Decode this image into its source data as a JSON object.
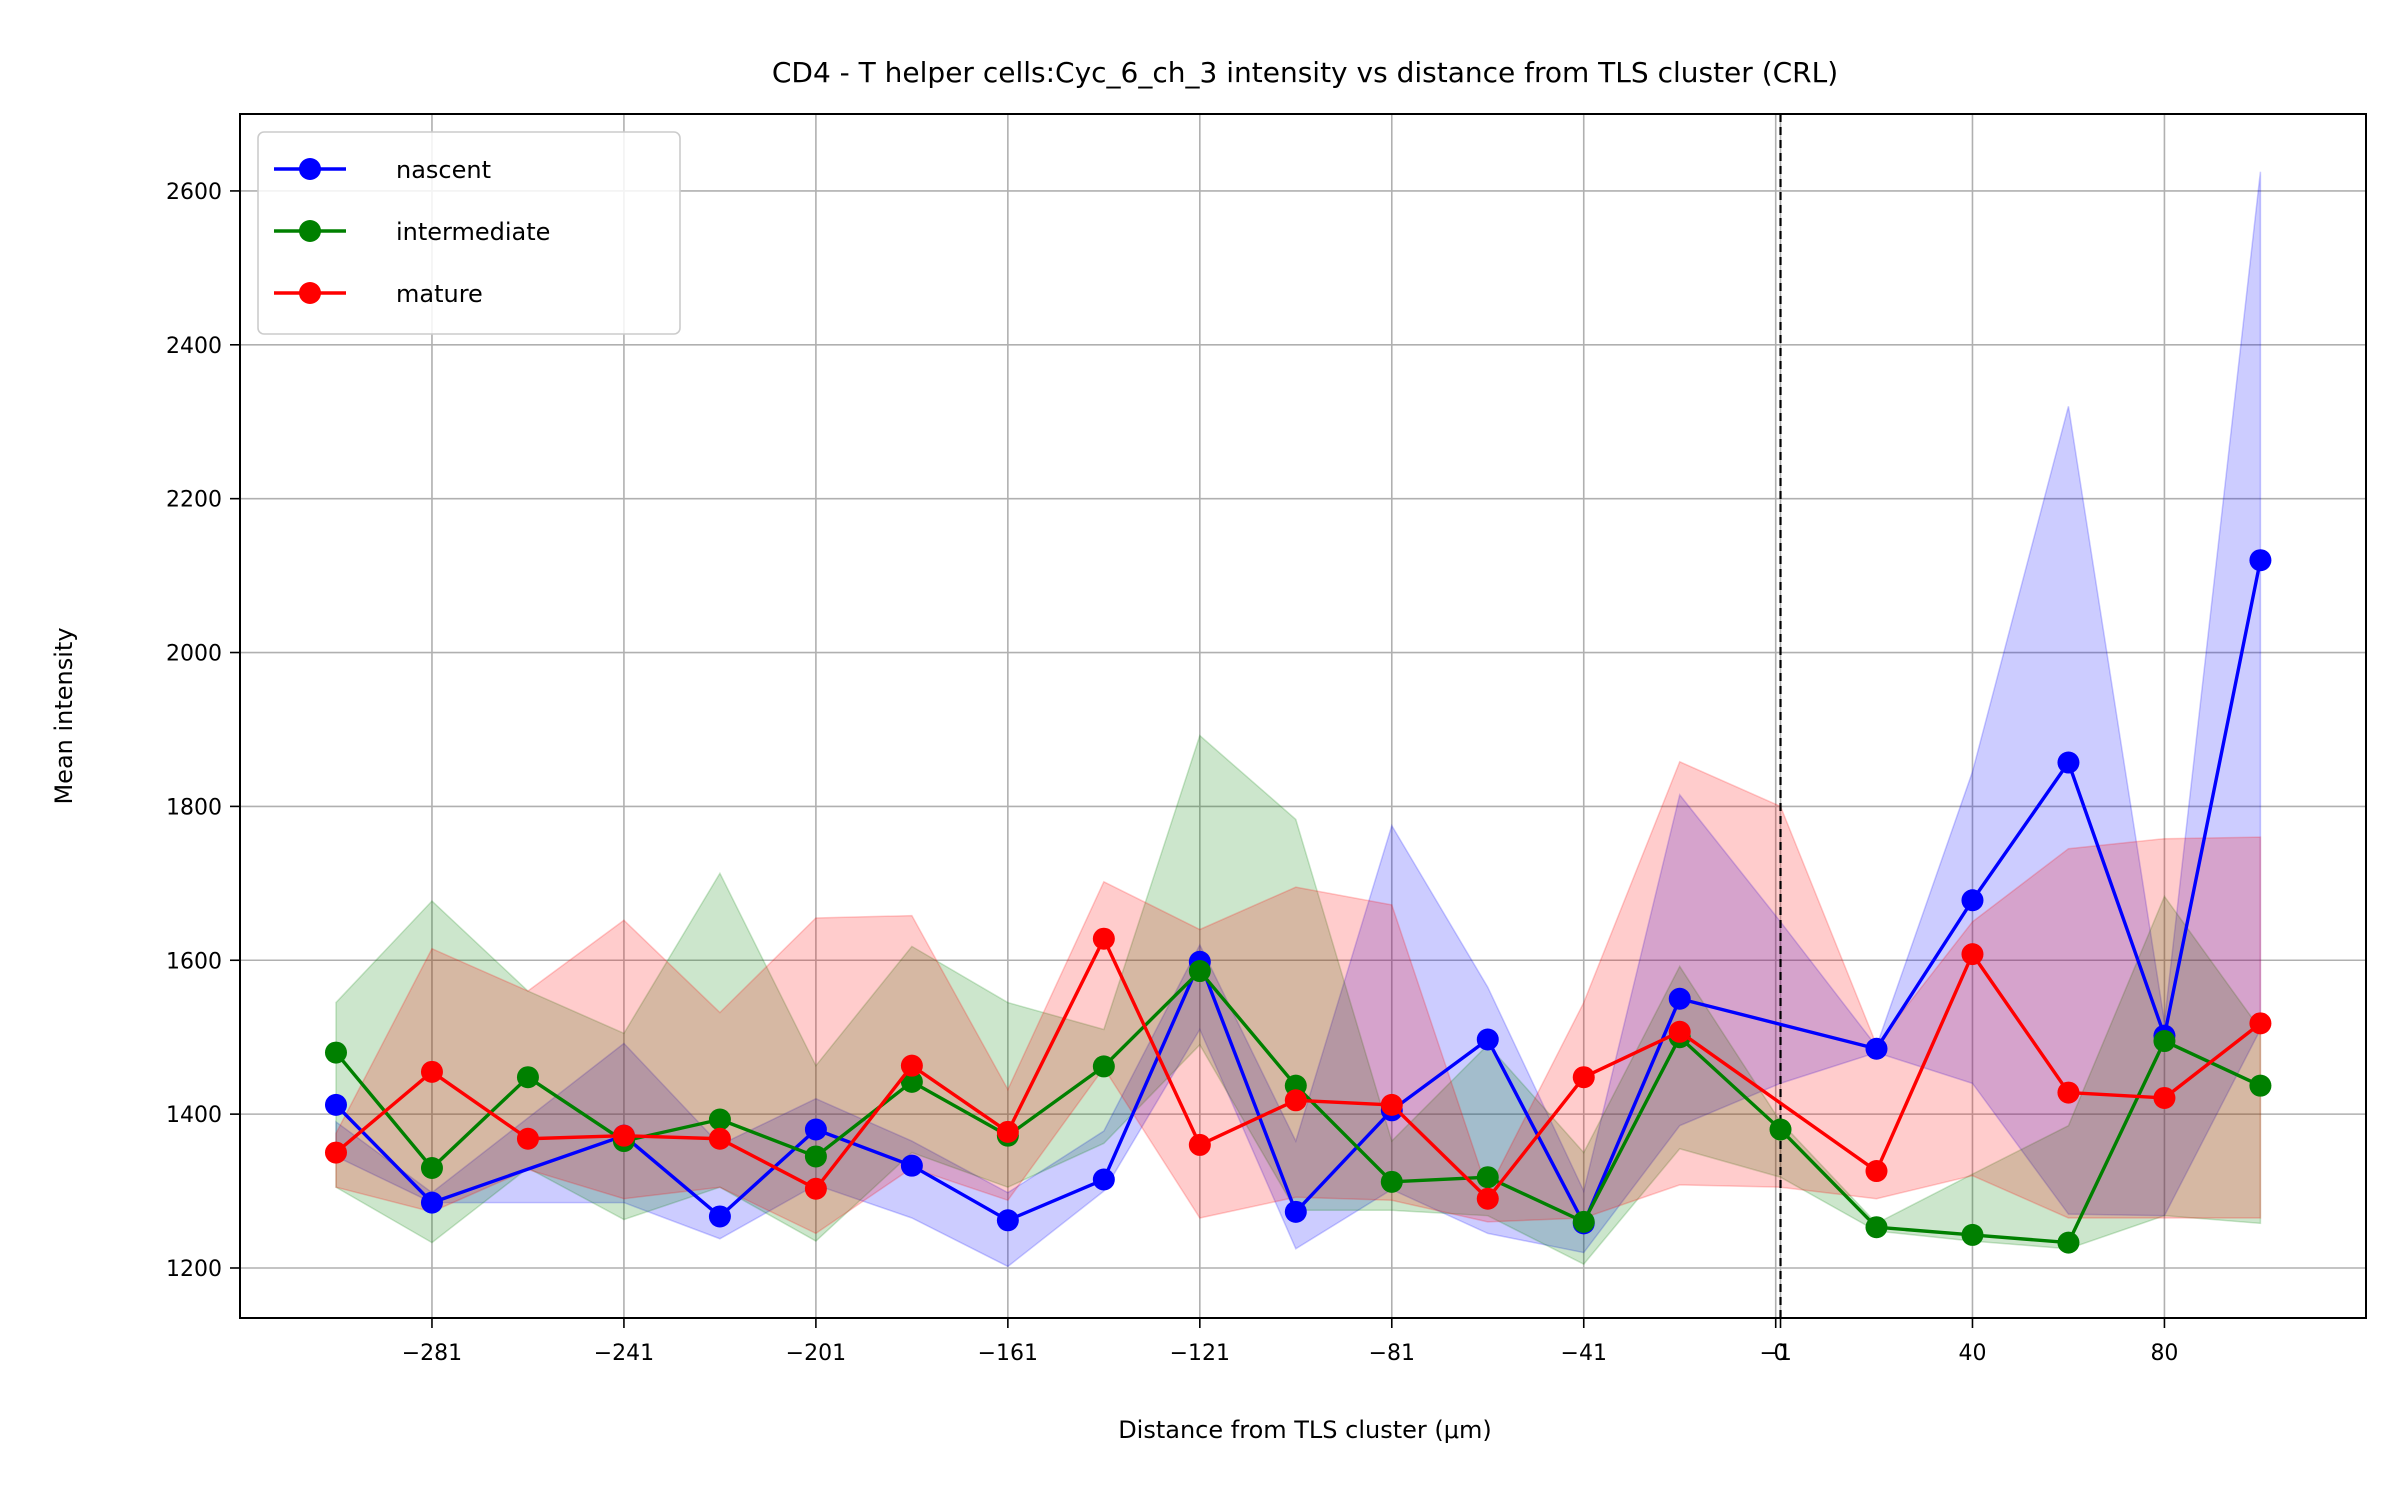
{
  "chart_data": {
    "type": "line",
    "title": "CD4 - T helper cells:Cyc_6_ch_3 intensity vs distance from TLS cluster (CRL)",
    "xlabel": "Distance from TLS cluster (μm)",
    "ylabel": "Mean intensity",
    "x_ticks": [
      -281,
      -241,
      -201,
      -161,
      -121,
      -81,
      -41,
      -1,
      0,
      40,
      80
    ],
    "y_ticks": [
      1200,
      1400,
      1600,
      1800,
      2000,
      2200,
      2400,
      2600
    ],
    "xlim": [
      -321,
      122
    ],
    "ylim": [
      1135,
      2700
    ],
    "grid": true,
    "legend_position": "top-left",
    "reference_line_x": 0,
    "x": [
      -301,
      -281,
      -261,
      -241,
      -221,
      -201,
      -181,
      -161,
      -141,
      -121,
      -101,
      -81,
      -61,
      -41,
      -21,
      0,
      20,
      40,
      60,
      80,
      100
    ],
    "series": [
      {
        "name": "nascent",
        "color": "#0000ff",
        "values": [
          1412,
          1285,
          null,
          1372,
          1267,
          1380,
          1333,
          1262,
          1315,
          1598,
          1273,
          1405,
          1497,
          1258,
          1550,
          null,
          1485,
          1678,
          1857,
          1502,
          2120
        ],
        "band_upper": [
          1390,
          1298,
          null,
          1492,
          1360,
          1420,
          1365,
          1298,
          1378,
          1620,
          1365,
          1775,
          1565,
          1300,
          1815,
          1650,
          1488,
          1845,
          2320,
          1520,
          2625
        ],
        "band_lower": [
          1345,
          1285,
          null,
          1285,
          1238,
          1308,
          1265,
          1202,
          1300,
          1510,
          1225,
          1302,
          1245,
          1220,
          1385,
          1440,
          1480,
          1440,
          1270,
          1268,
          1510
        ]
      },
      {
        "name": "intermediate",
        "color": "#008000",
        "values": [
          1480,
          1330,
          1448,
          1365,
          1393,
          1345,
          1442,
          1372,
          1462,
          1586,
          1437,
          1312,
          1318,
          1260,
          1500,
          1380,
          1253,
          1243,
          1233,
          1495,
          1437
        ],
        "band_upper": [
          1545,
          1677,
          1560,
          1505,
          1713,
          1463,
          1618,
          1545,
          1510,
          1892,
          1783,
          1365,
          1490,
          1350,
          1592,
          1390,
          1258,
          1322,
          1385,
          1683,
          1510
        ],
        "band_lower": [
          1305,
          1233,
          1330,
          1263,
          1305,
          1235,
          1350,
          1305,
          1362,
          1490,
          1275,
          1275,
          1268,
          1205,
          1355,
          1318,
          1248,
          1235,
          1225,
          1268,
          1258
        ]
      },
      {
        "name": "mature",
        "color": "#ff0000",
        "values": [
          1350,
          1455,
          1368,
          1372,
          1368,
          1303,
          1463,
          1377,
          1628,
          1360,
          1418,
          1412,
          1290,
          1448,
          1507,
          null,
          1326,
          1608,
          1428,
          1421,
          1518
        ],
        "band_upper": [
          1375,
          1615,
          1560,
          1652,
          1532,
          1655,
          1658,
          1432,
          1702,
          1640,
          1695,
          1672,
          1300,
          1545,
          1858,
          1800,
          1490,
          1650,
          1745,
          1758,
          1760
        ],
        "band_lower": [
          1305,
          1273,
          1328,
          1290,
          1305,
          1245,
          1330,
          1288,
          1460,
          1265,
          1292,
          1288,
          1260,
          1265,
          1308,
          1305,
          1290,
          1320,
          1265,
          1265,
          1265
        ]
      }
    ]
  }
}
